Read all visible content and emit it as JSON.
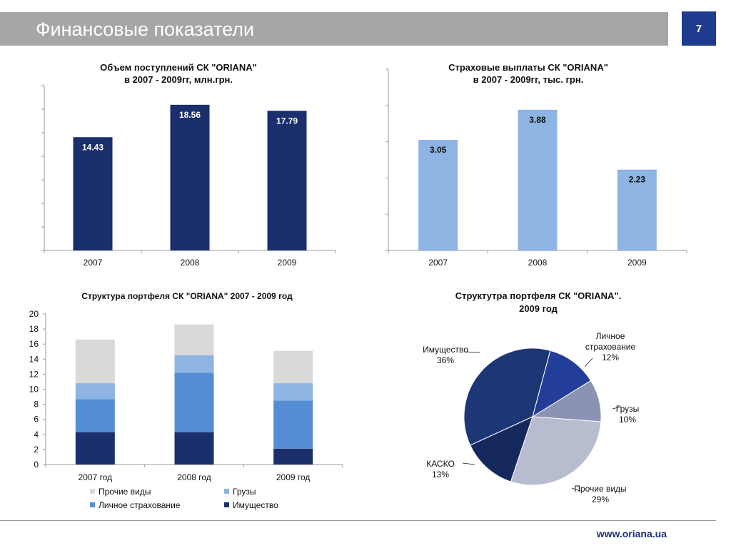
{
  "header": {
    "title": "Финансовые показатели",
    "page_number": "7"
  },
  "footer": {
    "url": "www.oriana.ua"
  },
  "colors": {
    "navy": "#1a2f6b",
    "light_blue": "#8db4e2",
    "mid_blue": "#558ed5",
    "pale_blue": "#c5d9f1",
    "light_gray": "#d9d9d9"
  },
  "chart_data": [
    {
      "type": "bar",
      "title": [
        "Объем поступлений СК \"ORIANA\"",
        "в 2007 - 2009гг, млн.грн."
      ],
      "categories": [
        "2007",
        "2008",
        "2009"
      ],
      "values": [
        14.43,
        18.56,
        17.79
      ],
      "value_labels": [
        "14.43",
        "18.56",
        "17.79"
      ],
      "ylim": [
        0,
        21
      ],
      "color": "#1a2f6b",
      "grid": false
    },
    {
      "type": "bar",
      "title": [
        "Страховые выплаты СК \"ORIANA\"",
        "в 2007 - 2009гг, тыс. грн."
      ],
      "categories": [
        "2007",
        "2008",
        "2009"
      ],
      "values": [
        3.05,
        3.88,
        2.23
      ],
      "value_labels": [
        "3.05",
        "3.88",
        "2.23"
      ],
      "ylim": [
        0,
        5
      ],
      "color": "#8db4e2",
      "grid": false
    },
    {
      "type": "bar",
      "stacked": true,
      "title": [
        "Структура портфеля СК \"ORIANA\" 2007 - 2009 год"
      ],
      "categories": [
        "2007 год",
        "2008 год",
        "2009 год"
      ],
      "ylim": [
        0,
        20
      ],
      "yticks": [
        "0",
        "2",
        "4",
        "6",
        "8",
        "10",
        "12",
        "14",
        "16",
        "18",
        "20"
      ],
      "series": [
        {
          "name": "Имущество",
          "color": "#1a2f6b",
          "values": [
            4.3,
            4.3,
            2.1
          ]
        },
        {
          "name": "Личное страхование",
          "color": "#558ed5",
          "values": [
            4.4,
            7.9,
            6.4
          ]
        },
        {
          "name": "Грузы",
          "color": "#8db4e2",
          "values": [
            2.1,
            2.3,
            2.3
          ]
        },
        {
          "name": "Прочие виды",
          "color": "#d9d9d9",
          "values": [
            5.8,
            4.1,
            4.3
          ]
        }
      ],
      "legend_placement": "bottom",
      "grid": false
    },
    {
      "type": "pie",
      "title": [
        "Структутра портфеля СК \"ORIANA\".",
        "2009 год"
      ],
      "slices": [
        {
          "name": "Личное страхование",
          "value": 12,
          "label": "12%",
          "color": "#233e99"
        },
        {
          "name": "Грузы",
          "value": 10,
          "label": "10%",
          "color": "#8a93b3"
        },
        {
          "name": "Прочие виды",
          "value": 29,
          "label": "29%",
          "color": "#b8bccf"
        },
        {
          "name": "КАСКО",
          "value": 13,
          "label": "13%",
          "color": "#16295f"
        },
        {
          "name": "Имущество",
          "value": 36,
          "label": "36%",
          "color": "#1d3675"
        }
      ]
    }
  ]
}
